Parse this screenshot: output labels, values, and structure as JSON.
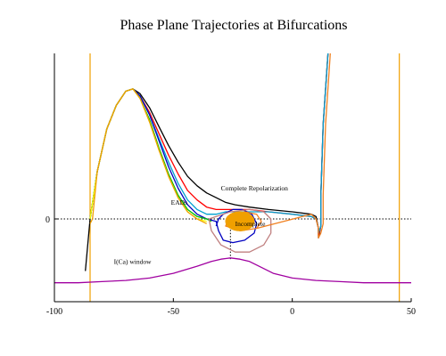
{
  "chart_data": {
    "type": "line",
    "title": "Phase Plane Trajectories at Bifurcations",
    "xlabel": "",
    "ylabel": "",
    "xlim": [
      -100,
      50
    ],
    "ylim": [
      -35,
      70
    ],
    "x_ticks": [
      -100,
      -50,
      0,
      50
    ],
    "x_tick_labels": [
      "-100",
      "-50",
      "0",
      "50"
    ],
    "y_ticks": [
      0
    ],
    "y_tick_labels": [
      "0"
    ],
    "grid": false,
    "legend": "none",
    "reference_lines": {
      "horizontal_zero": {
        "y": 0,
        "style": "dotted",
        "color": "#000000"
      },
      "vertical_dotted": {
        "x": -26,
        "y_from": -17,
        "y_to": 0,
        "color": "#000000"
      },
      "vertical_lines": [
        {
          "x": -85,
          "color": "#f0a000"
        },
        {
          "x": 45,
          "color": "#f0a000"
        }
      ]
    },
    "annotations": [
      {
        "text": "Complete Repolarization",
        "x": -30,
        "y": 12
      },
      {
        "text": "EADs",
        "x": -51,
        "y": 6
      },
      {
        "text": "Incomplete",
        "x": -24,
        "y": -3
      },
      {
        "text": "I(Ca) window",
        "x": -75,
        "y": -19
      }
    ],
    "series": [
      {
        "color": "#000000",
        "points": [
          [
            -87,
            -22
          ],
          [
            -85,
            0
          ],
          [
            -82,
            20
          ],
          [
            -78,
            38
          ],
          [
            -74,
            48
          ],
          [
            -70,
            54
          ],
          [
            -67,
            55
          ],
          [
            -64,
            53
          ],
          [
            -60,
            47
          ],
          [
            -56,
            39
          ],
          [
            -52,
            31
          ],
          [
            -48,
            24
          ],
          [
            -44,
            18
          ],
          [
            -40,
            14
          ],
          [
            -36,
            11
          ],
          [
            -32,
            9
          ],
          [
            -28,
            7
          ],
          [
            -24,
            6
          ],
          [
            -18,
            5
          ],
          [
            -10,
            4
          ],
          [
            0,
            3
          ],
          [
            8,
            2
          ],
          [
            10,
            1
          ],
          [
            11,
            -4
          ],
          [
            11,
            -8
          ],
          [
            12,
            -3
          ],
          [
            12,
            10
          ],
          [
            13,
            40
          ],
          [
            15,
            70
          ]
        ]
      },
      {
        "color": "#ff0000",
        "points": [
          [
            -85,
            0
          ],
          [
            -82,
            20
          ],
          [
            -78,
            38
          ],
          [
            -74,
            48
          ],
          [
            -70,
            54
          ],
          [
            -67,
            55
          ],
          [
            -64,
            52
          ],
          [
            -60,
            45
          ],
          [
            -56,
            36
          ],
          [
            -52,
            27
          ],
          [
            -48,
            19
          ],
          [
            -44,
            12
          ],
          [
            -40,
            8
          ],
          [
            -36,
            5
          ],
          [
            -32,
            4
          ],
          [
            -28,
            4
          ],
          [
            -24,
            4
          ],
          [
            -18,
            4
          ],
          [
            -10,
            3
          ],
          [
            0,
            2
          ],
          [
            8,
            1
          ],
          [
            10,
            0
          ],
          [
            11,
            -4
          ],
          [
            11,
            -7
          ],
          [
            12,
            -3
          ],
          [
            12,
            10
          ],
          [
            13,
            40
          ],
          [
            15,
            70
          ]
        ]
      },
      {
        "color": "#00a0d0",
        "points": [
          [
            -85,
            0
          ],
          [
            -82,
            20
          ],
          [
            -78,
            38
          ],
          [
            -74,
            48
          ],
          [
            -70,
            54
          ],
          [
            -67,
            55
          ],
          [
            -64,
            52
          ],
          [
            -60,
            44
          ],
          [
            -56,
            34
          ],
          [
            -52,
            24
          ],
          [
            -48,
            15
          ],
          [
            -44,
            8
          ],
          [
            -40,
            4
          ],
          [
            -36,
            2
          ],
          [
            -32,
            2
          ],
          [
            -28,
            3
          ],
          [
            -24,
            3
          ],
          [
            -18,
            3
          ],
          [
            -10,
            3
          ],
          [
            0,
            2
          ],
          [
            8,
            1
          ],
          [
            10,
            0
          ],
          [
            11,
            -4
          ],
          [
            11,
            -6
          ],
          [
            12,
            -3
          ],
          [
            12,
            10
          ],
          [
            13,
            40
          ],
          [
            15,
            70
          ]
        ]
      },
      {
        "color": "#0000c0",
        "points": [
          [
            -85,
            0
          ],
          [
            -82,
            20
          ],
          [
            -78,
            38
          ],
          [
            -74,
            48
          ],
          [
            -70,
            54
          ],
          [
            -67,
            55
          ],
          [
            -64,
            52
          ],
          [
            -60,
            44
          ],
          [
            -56,
            33
          ],
          [
            -52,
            22
          ],
          [
            -48,
            13
          ],
          [
            -44,
            6
          ],
          [
            -40,
            2
          ],
          [
            -36,
            0
          ],
          [
            -32,
            -1
          ],
          [
            -31,
            -5
          ],
          [
            -29,
            -9
          ],
          [
            -25,
            -10
          ],
          [
            -20,
            -9
          ],
          [
            -16,
            -6
          ],
          [
            -15,
            -2
          ],
          [
            -17,
            2
          ],
          [
            -21,
            4
          ],
          [
            -25,
            4
          ],
          [
            -29,
            2
          ],
          [
            -31,
            0
          ],
          [
            -32,
            -3
          ]
        ]
      },
      {
        "color": "#00c000",
        "points": [
          [
            -85,
            0
          ],
          [
            -82,
            20
          ],
          [
            -78,
            38
          ],
          [
            -74,
            48
          ],
          [
            -70,
            54
          ],
          [
            -67,
            55
          ],
          [
            -64,
            51
          ],
          [
            -60,
            42
          ],
          [
            -56,
            30
          ],
          [
            -52,
            19
          ],
          [
            -48,
            10
          ],
          [
            -44,
            4
          ],
          [
            -40,
            1
          ],
          [
            -36,
            0
          ],
          [
            -34,
            -1
          ]
        ]
      },
      {
        "color": "#ffff00",
        "points": [
          [
            -85,
            0
          ],
          [
            -82,
            20
          ],
          [
            -78,
            38
          ],
          [
            -74,
            48
          ],
          [
            -70,
            54
          ],
          [
            -67,
            55
          ],
          [
            -64,
            51
          ],
          [
            -60,
            41
          ],
          [
            -56,
            29
          ],
          [
            -52,
            18
          ],
          [
            -48,
            9
          ],
          [
            -44,
            3
          ],
          [
            -40,
            0
          ],
          [
            -36,
            -1
          ]
        ]
      },
      {
        "color": "#c08080",
        "points": [
          [
            -35,
            0
          ],
          [
            -34,
            -5
          ],
          [
            -30,
            -11
          ],
          [
            -24,
            -14
          ],
          [
            -18,
            -14
          ],
          [
            -12,
            -11
          ],
          [
            -9,
            -6
          ],
          [
            -9,
            0
          ],
          [
            -12,
            3
          ],
          [
            -18,
            4
          ],
          [
            -26,
            3
          ],
          [
            -32,
            1
          ],
          [
            -35,
            0
          ]
        ]
      },
      {
        "color": "#f08020",
        "points": [
          [
            -28,
            -3
          ],
          [
            -22,
            -5
          ],
          [
            -15,
            -4
          ],
          [
            -13,
            -1
          ],
          [
            -15,
            2
          ],
          [
            -20,
            3
          ],
          [
            -26,
            2
          ],
          [
            -28,
            -3
          ],
          [
            -22,
            -5
          ],
          [
            -15,
            -4
          ],
          [
            8,
            2
          ],
          [
            10,
            0
          ],
          [
            11,
            -4
          ],
          [
            11,
            -8
          ],
          [
            12,
            -6
          ],
          [
            13,
            -2
          ],
          [
            13,
            10
          ],
          [
            14,
            40
          ],
          [
            16,
            70
          ]
        ]
      },
      {
        "color": "#f0a000",
        "points": [
          [
            -85,
            -2
          ],
          [
            -84,
            0
          ],
          [
            -82,
            20
          ],
          [
            -78,
            38
          ],
          [
            -74,
            48
          ],
          [
            -70,
            54
          ],
          [
            -67,
            55
          ],
          [
            -64,
            51
          ],
          [
            -60,
            41
          ],
          [
            -56,
            29
          ],
          [
            -52,
            18
          ],
          [
            -48,
            9
          ],
          [
            -44,
            3
          ],
          [
            -40,
            0
          ],
          [
            -36,
            -2
          ]
        ],
        "blob": {
          "cx": -22,
          "cy": -1,
          "rx": 6,
          "ry": 4
        }
      },
      {
        "color": "#a000a0",
        "points": [
          [
            -100,
            -27
          ],
          [
            -90,
            -27
          ],
          [
            -80,
            -26.5
          ],
          [
            -70,
            -26
          ],
          [
            -60,
            -25
          ],
          [
            -50,
            -23
          ],
          [
            -40,
            -20
          ],
          [
            -34,
            -18
          ],
          [
            -30,
            -17
          ],
          [
            -26,
            -16.5
          ],
          [
            -22,
            -17
          ],
          [
            -18,
            -18
          ],
          [
            -14,
            -20
          ],
          [
            -8,
            -23
          ],
          [
            0,
            -25
          ],
          [
            10,
            -26
          ],
          [
            20,
            -26.5
          ],
          [
            30,
            -27
          ],
          [
            40,
            -27
          ],
          [
            50,
            -27
          ]
        ]
      }
    ]
  }
}
